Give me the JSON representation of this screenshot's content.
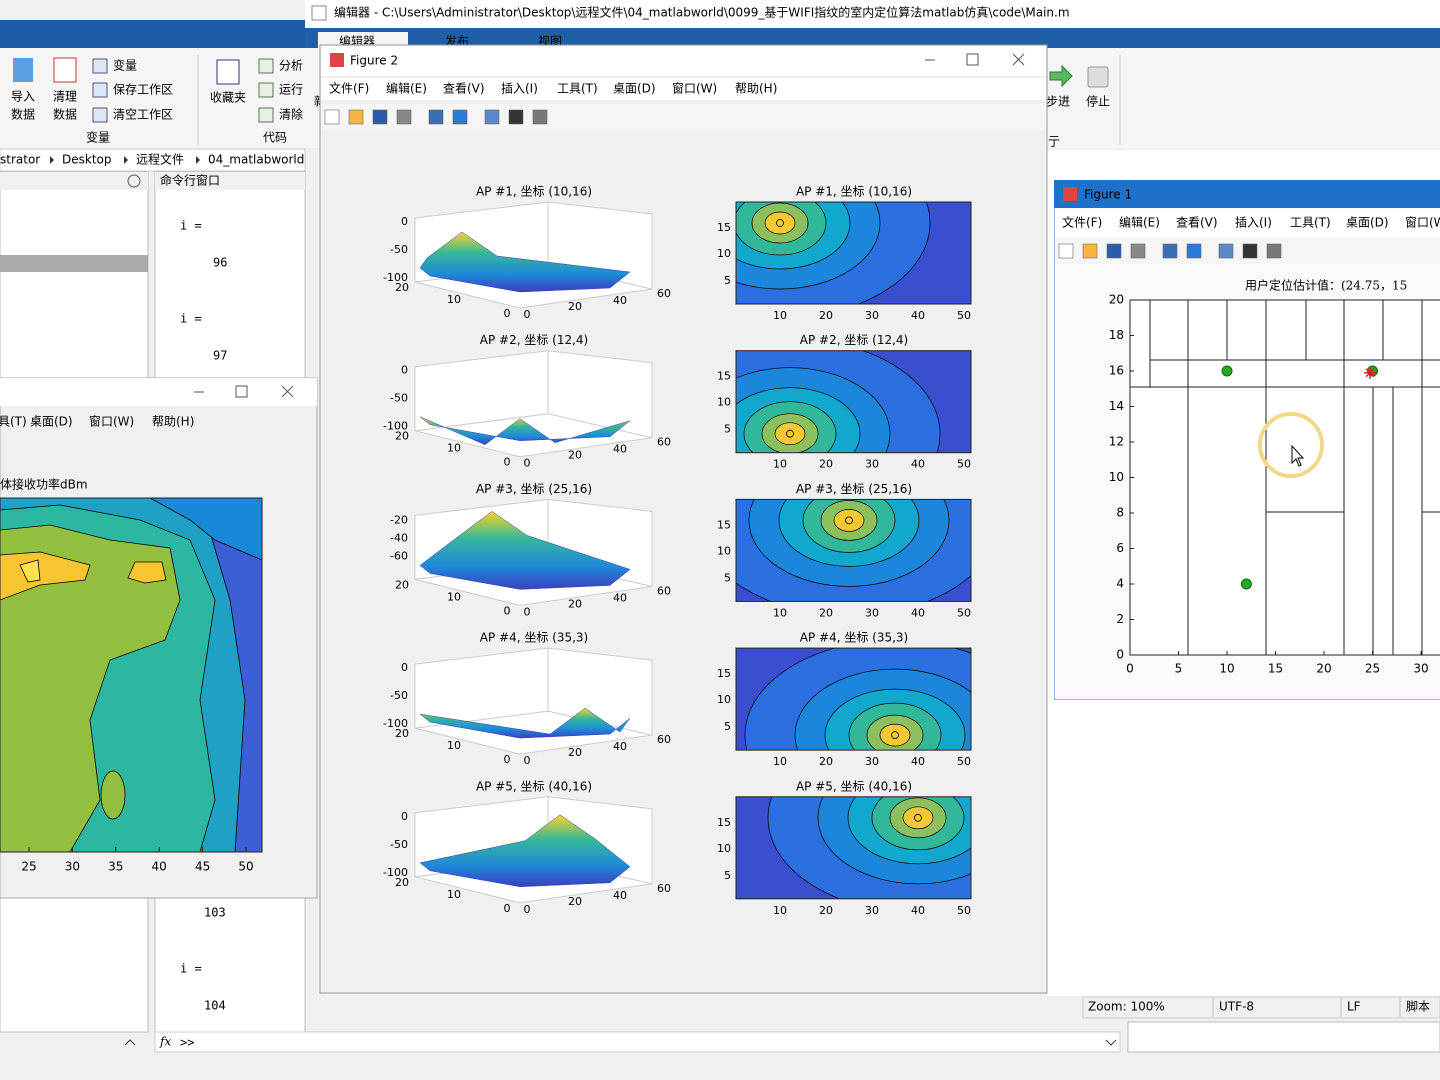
{
  "main_toolstrip": {
    "import_label": [
      "导入",
      "数据"
    ],
    "clear_data_label": [
      "清理",
      "数据"
    ],
    "variable": "变量",
    "save_workspace": "保存工作区",
    "clear_workspace": "清空工作区",
    "favorites": "收藏夹",
    "analyze": "分析",
    "run": "运行",
    "clear_commands": "清除",
    "group_variable": "变量",
    "group_code": "代码"
  },
  "breadcrumb": [
    "strator",
    "Desktop",
    "远程文件",
    "04_matlabworld"
  ],
  "command_window": {
    "title": "命令行窗口",
    "lines": [
      "i =",
      "96",
      "i =",
      "97",
      "103",
      "i =",
      "104"
    ],
    "fx_label": "fx",
    "prompt": ">>"
  },
  "editor": {
    "title": "编辑器 - C:\\Users\\Administrator\\Desktop\\远程文件\\04_matlabworld\\0099_基于WIFI指纹的室内定位算法matlab仿真\\code\\Main.m",
    "tabs": [
      "编辑器",
      "发布",
      "视图"
    ],
    "step": "步进",
    "stop": "停止",
    "partial_labels": [
      "新",
      "亍"
    ],
    "status": [
      "Zoom: 100%",
      "UTF-8",
      "LF",
      "脚本"
    ]
  },
  "figure_left": {
    "menu": [
      "工具(T)",
      "桌面(D)",
      "窗口(W)",
      "帮助(H)"
    ],
    "plot_title": "体接收功率dBm",
    "xticks": [
      25,
      30,
      35,
      40,
      45,
      50
    ]
  },
  "figure2": {
    "title": "Figure 2",
    "menu": [
      "文件(F)",
      "编辑(E)",
      "查看(V)",
      "插入(I)",
      "工具(T)",
      "桌面(D)",
      "窗口(W)",
      "帮助(H)"
    ],
    "rows": [
      {
        "title": "AP #1, 坐标 (10,16)",
        "z_ticks": [
          0,
          -50,
          -100
        ]
      },
      {
        "title": "AP #2, 坐标 (12,4)",
        "z_ticks": [
          0,
          -50,
          -100
        ]
      },
      {
        "title": "AP #3, 坐标 (25,16)",
        "z_ticks": [
          -20,
          -40,
          -60
        ]
      },
      {
        "title": "AP #4, 坐标 (35,3)",
        "z_ticks": [
          0,
          -50,
          -100
        ]
      },
      {
        "title": "AP #5, 坐标 (40,16)",
        "z_ticks": [
          0,
          -50,
          -100
        ]
      }
    ],
    "surface_y_ticks": [
      20,
      10,
      0
    ],
    "surface_x_ticks": [
      0,
      20,
      40,
      60
    ],
    "contour_y_ticks": [
      15,
      10,
      5
    ],
    "contour_x_ticks": [
      10,
      20,
      30,
      40,
      50
    ]
  },
  "figure1": {
    "title": "Figure 1",
    "menu": [
      "文件(F)",
      "编辑(E)",
      "查看(V)",
      "插入(I)",
      "工具(T)",
      "桌面(D)",
      "窗口(W)"
    ],
    "plot": {
      "title": "用户定位估计值：(24.75，15",
      "xticks": [
        0,
        5,
        10,
        15,
        20,
        25,
        30
      ],
      "yticks": [
        0,
        2,
        4,
        6,
        8,
        10,
        12,
        14,
        16,
        18,
        20
      ],
      "anchors": {
        "x": [
          10,
          25,
          12
        ],
        "y": [
          16,
          16,
          4
        ]
      },
      "estimate": {
        "x": 24.75,
        "y": 15.9
      }
    }
  }
}
